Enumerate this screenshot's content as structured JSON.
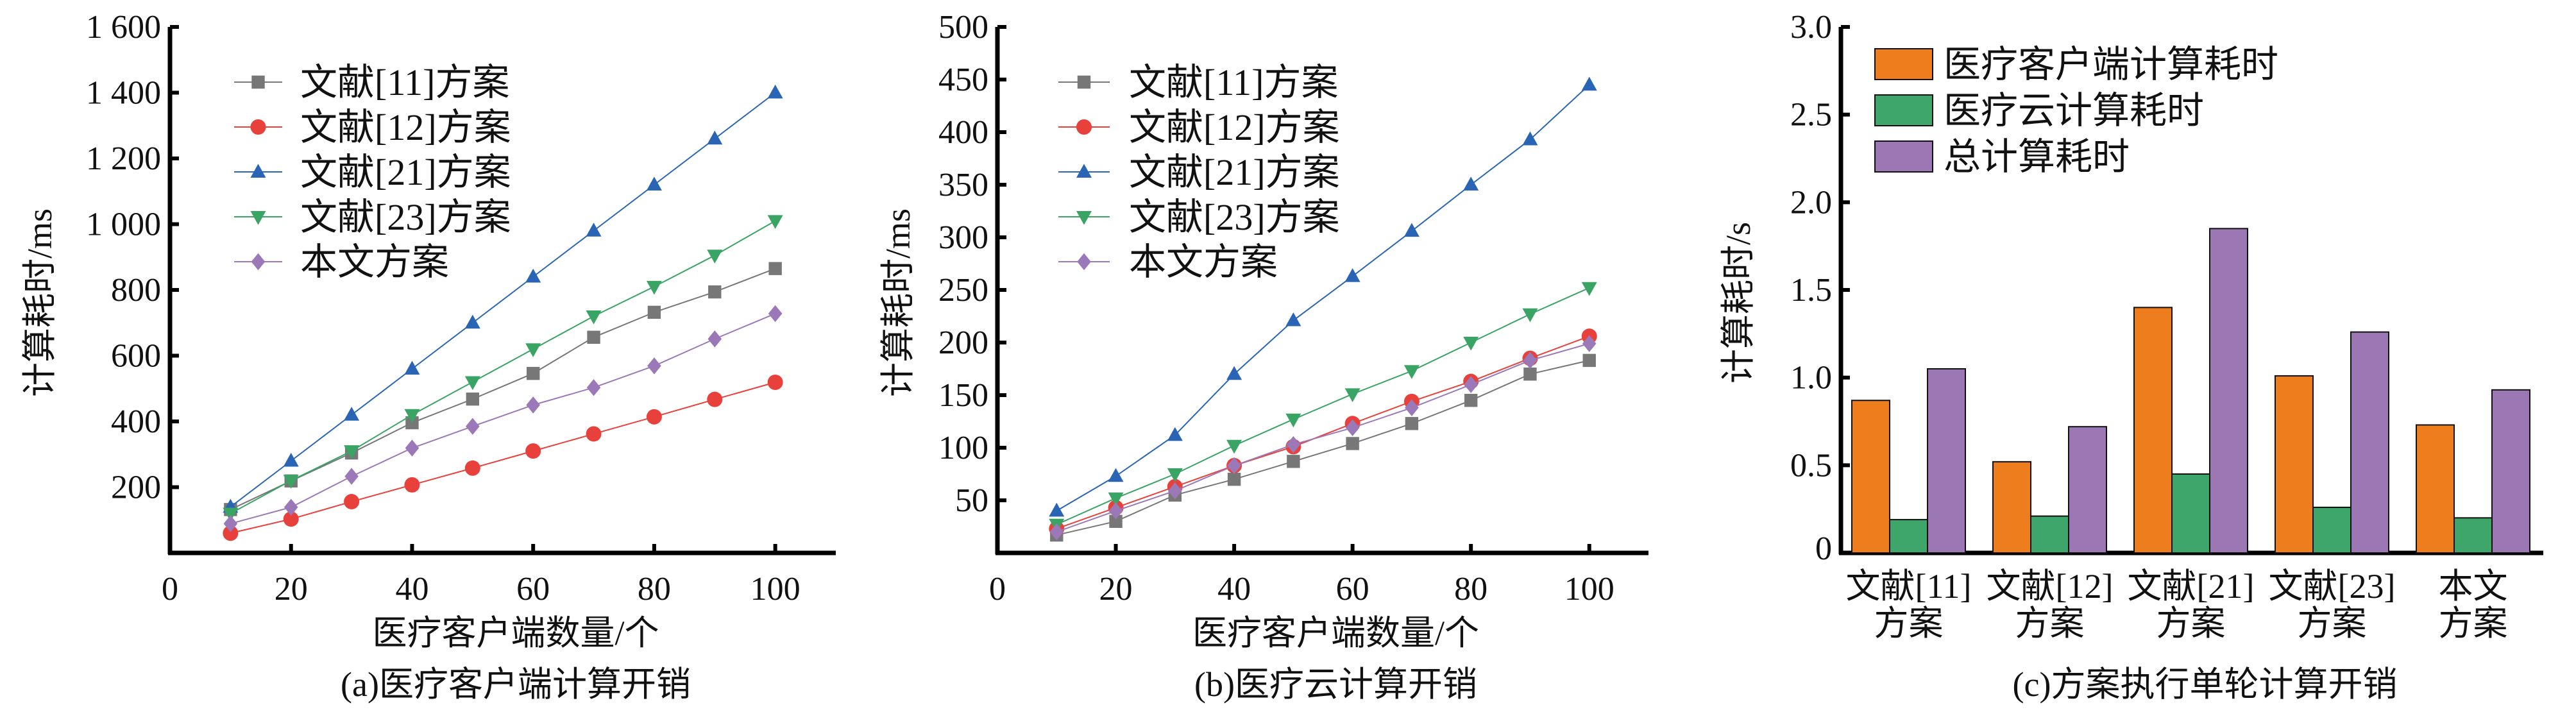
{
  "chart_data": [
    {
      "type": "line",
      "caption": "(a)医疗客户端计算开销",
      "xlabel": "医疗客户端数量/个",
      "ylabel": "计算耗时/ms",
      "xlim": [
        0,
        110
      ],
      "ylim": [
        0,
        1600
      ],
      "xticks": [
        0,
        20,
        40,
        60,
        80,
        100
      ],
      "xtick_labels": [
        "0",
        "20",
        "40",
        "60",
        "80",
        "100"
      ],
      "yticks": [
        200,
        400,
        600,
        800,
        1000,
        1200,
        1400,
        1600
      ],
      "ytick_labels": [
        "200",
        "400",
        "600",
        "800",
        "1 000",
        "1 200",
        "1 400",
        "1 600"
      ],
      "legend_position": "top-left",
      "x": [
        10,
        20,
        30,
        40,
        50,
        60,
        70,
        80,
        90,
        100
      ],
      "series": [
        {
          "name": "文献[11]方案",
          "color": "#777777",
          "marker": "square",
          "values": [
            132,
            219,
            304,
            396,
            468,
            546,
            656,
            732,
            794,
            865
          ]
        },
        {
          "name": "文献[12]方案",
          "color": "#e8413c",
          "marker": "circle",
          "values": [
            60,
            103,
            156,
            207,
            258,
            310,
            362,
            414,
            467,
            519
          ]
        },
        {
          "name": "文献[21]方案",
          "color": "#2a65b5",
          "marker": "triangle-up",
          "values": [
            140,
            280,
            420,
            560,
            700,
            840,
            980,
            1120,
            1260,
            1400
          ]
        },
        {
          "name": "文献[23]方案",
          "color": "#3aa464",
          "marker": "triangle-down",
          "values": [
            120,
            220,
            310,
            420,
            520,
            620,
            720,
            810,
            905,
            1010
          ]
        },
        {
          "name": "本文方案",
          "color": "#9b78b8",
          "marker": "diamond",
          "values": [
            89,
            139,
            233,
            319,
            385,
            450,
            503,
            569,
            651,
            728
          ]
        }
      ]
    },
    {
      "type": "line",
      "caption": "(b)医疗云计算开销",
      "xlabel": "医疗客户端数量/个",
      "ylabel": "计算耗时/ms",
      "xlim": [
        0,
        110
      ],
      "ylim": [
        0,
        500
      ],
      "xticks": [
        0,
        20,
        40,
        60,
        80,
        100
      ],
      "xtick_labels": [
        "0",
        "20",
        "40",
        "60",
        "80",
        "100"
      ],
      "yticks": [
        50,
        100,
        150,
        200,
        250,
        300,
        350,
        400,
        450,
        500
      ],
      "ytick_labels": [
        "50",
        "100",
        "150",
        "200",
        "250",
        "300",
        "350",
        "400",
        "450",
        "500"
      ],
      "legend_position": "top-left",
      "x": [
        10,
        20,
        30,
        40,
        50,
        60,
        70,
        80,
        90,
        100
      ],
      "series": [
        {
          "name": "文献[11]方案",
          "color": "#777777",
          "marker": "square",
          "values": [
            17,
            30,
            55,
            70,
            87,
            104,
            123,
            145,
            170,
            183
          ]
        },
        {
          "name": "文献[12]方案",
          "color": "#e8413c",
          "marker": "circle",
          "values": [
            23,
            43,
            63,
            83,
            101,
            123,
            144,
            163,
            185,
            206
          ]
        },
        {
          "name": "文献[21]方案",
          "color": "#2a65b5",
          "marker": "triangle-up",
          "values": [
            40,
            73,
            112,
            170,
            221,
            263,
            306,
            350,
            393,
            445
          ]
        },
        {
          "name": "文献[23]方案",
          "color": "#3aa464",
          "marker": "triangle-down",
          "values": [
            27,
            52,
            75,
            102,
            127,
            151,
            173,
            200,
            227,
            252
          ]
        },
        {
          "name": "本文方案",
          "color": "#9b78b8",
          "marker": "diamond",
          "values": [
            20,
            40,
            59,
            83,
            103,
            119,
            138,
            160,
            183,
            199
          ]
        }
      ]
    },
    {
      "type": "bar",
      "caption": "(c)方案执行单轮计算开销",
      "xlabel": "",
      "ylabel": "计算耗时/s",
      "ylim": [
        0,
        3.0
      ],
      "yticks": [
        0,
        0.5,
        1.0,
        1.5,
        2.0,
        2.5,
        3.0
      ],
      "ytick_labels": [
        "0",
        "0.5",
        "1.0",
        "1.5",
        "2.0",
        "2.5",
        "3.0"
      ],
      "legend_position": "top-left",
      "categories": [
        [
          "文献[11]",
          "方案"
        ],
        [
          "文献[12]",
          "方案"
        ],
        [
          "文献[21]",
          "方案"
        ],
        [
          "文献[23]",
          "方案"
        ],
        [
          "本文",
          "方案"
        ]
      ],
      "series": [
        {
          "name": "医疗客户端计算耗时",
          "color": "#ee7d1e",
          "values": [
            0.87,
            0.52,
            1.4,
            1.01,
            0.73
          ]
        },
        {
          "name": "医疗云计算耗时",
          "color": "#3ea66a",
          "values": [
            0.19,
            0.21,
            0.45,
            0.26,
            0.2
          ]
        },
        {
          "name": "总计算耗时",
          "color": "#9b78b3",
          "values": [
            1.05,
            0.72,
            1.85,
            1.26,
            0.93
          ]
        }
      ]
    }
  ]
}
